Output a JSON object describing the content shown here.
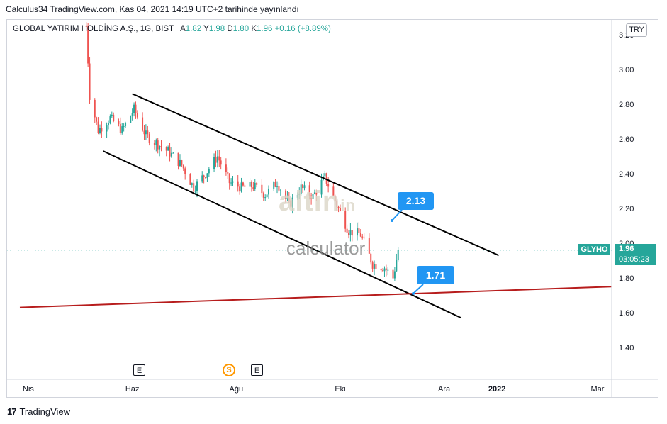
{
  "published": "Calculus34 TradingView.com, Kas 04, 2021 14:19 UTC+2 tarihinde yayınlandı",
  "legend": {
    "symbol": "GLOBAL YATIRIM HOLDİNG A.Ş., 1G, BIST",
    "o_label": "A",
    "o": "1.82",
    "h_label": "Y",
    "h": "1.98",
    "l_label": "D",
    "l": "1.80",
    "c_label": "K",
    "c": "1.96",
    "change": "+0.16 (+8.89%)"
  },
  "currency": "TRY",
  "ticker_tag": "GLYHO",
  "price_tag": {
    "price": "1.96",
    "countdown": "03:05:23"
  },
  "callouts": {
    "upper": "2.13",
    "lower": "1.71"
  },
  "events": {
    "e1": "E",
    "s1": "S",
    "e2": "E"
  },
  "watermark": {
    "brand": "altin",
    "suffix": "in",
    "text": "calculator"
  },
  "footer": {
    "brand": "TradingView"
  },
  "colors": {
    "up": "#26a69a",
    "down": "#ef5350",
    "channel": "#000000",
    "support": "#b71c1c",
    "callout": "#2196f3"
  },
  "chart_data": {
    "type": "candlestick",
    "y_ticks": [
      "1.40",
      "1.60",
      "1.80",
      "2.00",
      "2.20",
      "2.40",
      "2.60",
      "2.80",
      "3.00",
      "3.20"
    ],
    "ylim": [
      1.28,
      3.25
    ],
    "x_ticks": [
      "Nis",
      "Haz",
      "Ağu",
      "Eki",
      "Ara",
      "2022",
      "Mar"
    ],
    "price_path": [
      {
        "date": "2021-05-05",
        "value": 3.25
      },
      {
        "date": "2021-05-07",
        "value": 2.85
      },
      {
        "date": "2021-05-12",
        "value": 2.65
      },
      {
        "date": "2021-05-19",
        "value": 2.72
      },
      {
        "date": "2021-05-26",
        "value": 2.65
      },
      {
        "date": "2021-06-02",
        "value": 2.77
      },
      {
        "date": "2021-06-09",
        "value": 2.62
      },
      {
        "date": "2021-06-16",
        "value": 2.57
      },
      {
        "date": "2021-06-23",
        "value": 2.52
      },
      {
        "date": "2021-06-30",
        "value": 2.45
      },
      {
        "date": "2021-07-07",
        "value": 2.32
      },
      {
        "date": "2021-07-14",
        "value": 2.4
      },
      {
        "date": "2021-07-21",
        "value": 2.5
      },
      {
        "date": "2021-07-28",
        "value": 2.35
      },
      {
        "date": "2021-08-04",
        "value": 2.32
      },
      {
        "date": "2021-08-11",
        "value": 2.33
      },
      {
        "date": "2021-08-18",
        "value": 2.28
      },
      {
        "date": "2021-08-25",
        "value": 2.35
      },
      {
        "date": "2021-09-01",
        "value": 2.22
      },
      {
        "date": "2021-09-08",
        "value": 2.32
      },
      {
        "date": "2021-09-15",
        "value": 2.27
      },
      {
        "date": "2021-09-22",
        "value": 2.38
      },
      {
        "date": "2021-09-29",
        "value": 2.22
      },
      {
        "date": "2021-10-06",
        "value": 2.07
      },
      {
        "date": "2021-10-13",
        "value": 2.05
      },
      {
        "date": "2021-10-20",
        "value": 1.88
      },
      {
        "date": "2021-10-27",
        "value": 1.86
      },
      {
        "date": "2021-11-01",
        "value": 1.8
      },
      {
        "date": "2021-11-04",
        "value": 1.96
      }
    ],
    "channel_upper": [
      {
        "date": "2021-06-01",
        "value": 2.86
      },
      {
        "date": "2022-01-02",
        "value": 1.93
      }
    ],
    "channel_lower": [
      {
        "date": "2021-05-15",
        "value": 2.53
      },
      {
        "date": "2021-12-11",
        "value": 1.57
      }
    ],
    "support_line": [
      {
        "date": "2021-03-27",
        "value": 1.63
      },
      {
        "date": "2022-03-09",
        "value": 1.75
      }
    ],
    "current_price": 1.96
  }
}
